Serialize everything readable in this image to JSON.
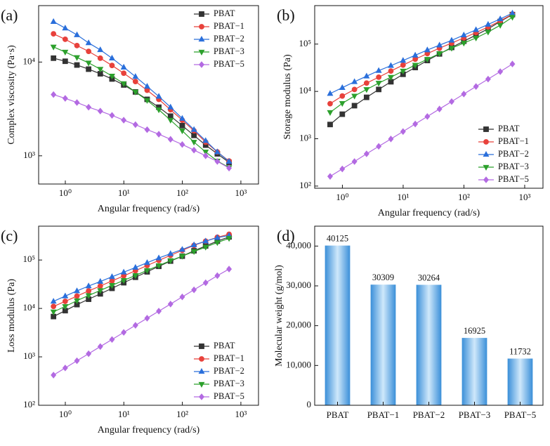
{
  "chart_data": [
    {
      "type": "line",
      "panel_label": "(a)",
      "x_label": "Angular frequency (rad/s)",
      "y_label": "Complex viscosity (Pa·s)",
      "xscale": "log",
      "yscale": "log",
      "legend": "upper right",
      "xlim": [
        0.35,
        2000
      ],
      "ylim": [
        500,
        40000
      ],
      "xticks": [
        {
          "value": 1,
          "label": "10⁰"
        },
        {
          "value": 10,
          "label": "10¹"
        },
        {
          "value": 100,
          "label": "10²"
        },
        {
          "value": 1000,
          "label": "10³"
        }
      ],
      "yticks": [
        {
          "value": 1000,
          "label": "10³"
        },
        {
          "value": 10000,
          "label": "10⁴"
        }
      ],
      "x": [
        0.628,
        0.996,
        1.58,
        2.5,
        3.96,
        6.28,
        9.96,
        15.8,
        25,
        39.6,
        62.8,
        99.6,
        158,
        250,
        396,
        628
      ],
      "series": [
        {
          "name": "PBAT",
          "color": "#333333",
          "marker": "square",
          "values": [
            11000,
            10200,
            9300,
            8400,
            7500,
            6600,
            5700,
            4800,
            4000,
            3300,
            2650,
            2100,
            1650,
            1300,
            1050,
            850
          ]
        },
        {
          "name": "PBAT−1",
          "color": "#e8413b",
          "marker": "circle",
          "values": [
            20000,
            17500,
            15000,
            13000,
            11000,
            9200,
            7600,
            6200,
            5000,
            4000,
            3100,
            2400,
            1850,
            1400,
            1100,
            880
          ]
        },
        {
          "name": "PBAT−2",
          "color": "#2a6fdb",
          "marker": "triangle-up",
          "values": [
            27000,
            23000,
            19500,
            16000,
            13500,
            11000,
            8800,
            7000,
            5500,
            4300,
            3300,
            2500,
            1900,
            1450,
            1100,
            870
          ]
        },
        {
          "name": "PBAT−3",
          "color": "#2ca02c",
          "marker": "triangle-down",
          "values": [
            14500,
            12800,
            11200,
            9800,
            8400,
            7100,
            5900,
            4800,
            3900,
            3100,
            2400,
            1850,
            1400,
            1100,
            880,
            750
          ]
        },
        {
          "name": "PBAT−5",
          "color": "#b36ae2",
          "marker": "diamond",
          "values": [
            4500,
            4100,
            3700,
            3300,
            3000,
            2700,
            2400,
            2150,
            1900,
            1700,
            1500,
            1320,
            1150,
            1000,
            870,
            740
          ]
        }
      ]
    },
    {
      "type": "line",
      "panel_label": "(b)",
      "x_label": "Angular frequency (rad/s)",
      "y_label": "Storage modulus (Pa)",
      "xscale": "log",
      "yscale": "log",
      "legend": "lower right",
      "xlim": [
        0.35,
        2000
      ],
      "ylim": [
        90,
        650000
      ],
      "xticks": [
        {
          "value": 1,
          "label": "10⁰"
        },
        {
          "value": 10,
          "label": "10¹"
        },
        {
          "value": 100,
          "label": "10²"
        },
        {
          "value": 1000,
          "label": "10³"
        }
      ],
      "yticks": [
        {
          "value": 100,
          "label": "10²"
        },
        {
          "value": 1000,
          "label": "10³"
        },
        {
          "value": 10000,
          "label": "10⁴"
        },
        {
          "value": 100000,
          "label": "10⁵"
        }
      ],
      "x": [
        0.628,
        0.996,
        1.58,
        2.5,
        3.96,
        6.28,
        9.96,
        15.8,
        25,
        39.6,
        62.8,
        99.6,
        158,
        250,
        396,
        628
      ],
      "series": [
        {
          "name": "PBAT",
          "color": "#333333",
          "marker": "square",
          "values": [
            2000,
            3300,
            5000,
            7500,
            11000,
            16000,
            23000,
            32000,
            45000,
            62000,
            85000,
            115000,
            155000,
            210000,
            300000,
            420000
          ]
        },
        {
          "name": "PBAT−1",
          "color": "#e8413b",
          "marker": "circle",
          "values": [
            5500,
            8000,
            11000,
            15000,
            20000,
            27000,
            36000,
            48000,
            63000,
            82000,
            105000,
            135000,
            175000,
            230000,
            310000,
            430000
          ]
        },
        {
          "name": "PBAT−2",
          "color": "#2a6fdb",
          "marker": "triangle-up",
          "values": [
            9000,
            12000,
            16000,
            21000,
            27500,
            35000,
            45000,
            58000,
            75000,
            95000,
            120000,
            155000,
            200000,
            260000,
            340000,
            450000
          ]
        },
        {
          "name": "PBAT−3",
          "color": "#2ca02c",
          "marker": "triangle-down",
          "values": [
            3600,
            5600,
            8000,
            11000,
            15000,
            20000,
            27000,
            36000,
            48000,
            63000,
            82000,
            105000,
            135000,
            180000,
            250000,
            370000
          ]
        },
        {
          "name": "PBAT−5",
          "color": "#b36ae2",
          "marker": "diamond",
          "values": [
            160,
            230,
            330,
            480,
            690,
            990,
            1420,
            2050,
            2950,
            4250,
            6100,
            8800,
            12700,
            18200,
            26200,
            38000
          ]
        }
      ]
    },
    {
      "type": "line",
      "panel_label": "(c)",
      "x_label": "Angular frequency (rad/s)",
      "y_label": "Loss modulus (Pa)",
      "xscale": "log",
      "yscale": "log",
      "legend": "lower right",
      "xlim": [
        0.35,
        2000
      ],
      "ylim": [
        100,
        500000
      ],
      "xticks": [
        {
          "value": 1,
          "label": "10⁰"
        },
        {
          "value": 10,
          "label": "10¹"
        },
        {
          "value": 100,
          "label": "10²"
        },
        {
          "value": 1000,
          "label": "10³"
        }
      ],
      "yticks": [
        {
          "value": 100,
          "label": "10²"
        },
        {
          "value": 1000,
          "label": "10³"
        },
        {
          "value": 10000,
          "label": "10⁴"
        },
        {
          "value": 100000,
          "label": "10⁵"
        }
      ],
      "x": [
        0.628,
        0.996,
        1.58,
        2.5,
        3.96,
        6.28,
        9.96,
        15.8,
        25,
        39.6,
        62.8,
        99.6,
        158,
        250,
        396,
        628
      ],
      "series": [
        {
          "name": "PBAT",
          "color": "#333333",
          "marker": "square",
          "values": [
            6800,
            9000,
            12000,
            15500,
            20000,
            26000,
            34000,
            44000,
            57000,
            74000,
            95000,
            120000,
            155000,
            195000,
            245000,
            300000
          ]
        },
        {
          "name": "PBAT−1",
          "color": "#e8413b",
          "marker": "circle",
          "values": [
            11000,
            14000,
            18000,
            23000,
            29000,
            37000,
            47000,
            60000,
            77000,
            98000,
            125000,
            158000,
            200000,
            245000,
            295000,
            340000
          ]
        },
        {
          "name": "PBAT−2",
          "color": "#2a6fdb",
          "marker": "triangle-up",
          "values": [
            14000,
            18000,
            23000,
            29000,
            36000,
            45000,
            56000,
            70000,
            88000,
            110000,
            135000,
            165000,
            205000,
            245000,
            290000,
            320000
          ]
        },
        {
          "name": "PBAT−3",
          "color": "#2ca02c",
          "marker": "triangle-down",
          "values": [
            8500,
            11000,
            14500,
            18500,
            23500,
            30000,
            38000,
            48000,
            61000,
            77000,
            97000,
            120000,
            150000,
            185000,
            230000,
            280000
          ]
        },
        {
          "name": "PBAT−5",
          "color": "#b36ae2",
          "marker": "diamond",
          "values": [
            420,
            590,
            830,
            1160,
            1630,
            2280,
            3200,
            4480,
            6280,
            8800,
            12300,
            17300,
            24200,
            33900,
            47500,
            65000
          ]
        }
      ]
    },
    {
      "type": "bar",
      "panel_label": "(d)",
      "y_label": "Molecular weight (g/mol)",
      "color": "#3a8fd8",
      "categories": [
        "PBAT",
        "PBAT−1",
        "PBAT−2",
        "PBAT−3",
        "PBAT−5"
      ],
      "values": [
        40125,
        30309,
        30264,
        16925,
        11732
      ],
      "ylim": [
        0,
        45000
      ],
      "yticks": [
        0,
        {
          "value": 10000,
          "label": "10,000"
        },
        {
          "value": 20000,
          "label": "20,000"
        },
        {
          "value": 30000,
          "label": "30,000"
        },
        {
          "value": 40000,
          "label": "40,000"
        }
      ]
    }
  ]
}
